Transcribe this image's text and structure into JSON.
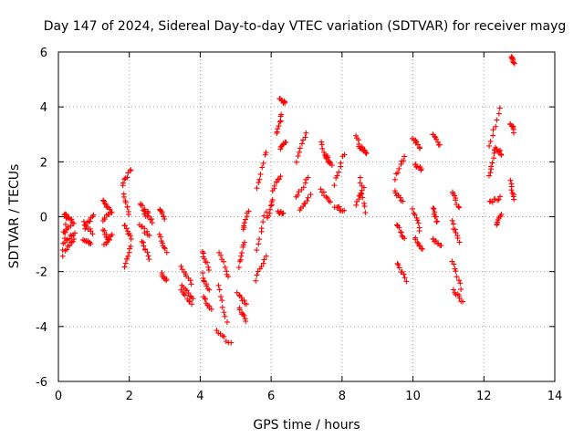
{
  "chart_data": {
    "type": "scatter",
    "title": "Day 147 of 2024, Sidereal Day-to-day VTEC variation (SDTVAR) for receiver mayg",
    "xlabel": "GPS time / hours",
    "ylabel": "SDTVAR / TECUs",
    "xlim": [
      0,
      14
    ],
    "ylim": [
      -6,
      6
    ],
    "xticks": [
      0,
      2,
      4,
      6,
      8,
      10,
      12,
      14
    ],
    "yticks": [
      -6,
      -4,
      -2,
      0,
      2,
      4,
      6
    ],
    "grid": true,
    "marker": "plus",
    "color": "#ff0000",
    "series": [
      {
        "name": "SDTVAR",
        "segments": [
          {
            "x0": 0.12,
            "x1": 0.22,
            "y0": -1.4,
            "y1": 0.1
          },
          {
            "x0": 0.15,
            "x1": 0.38,
            "y0": 0.1,
            "y1": -0.1
          },
          {
            "x0": 0.15,
            "x1": 0.42,
            "y0": -0.6,
            "y1": -0.2
          },
          {
            "x0": 0.18,
            "x1": 0.45,
            "y0": -0.9,
            "y1": -0.6
          },
          {
            "x0": 0.2,
            "x1": 0.45,
            "y0": -1.2,
            "y1": -0.8
          },
          {
            "x0": 0.7,
            "x1": 0.95,
            "y0": -0.2,
            "y1": -0.6
          },
          {
            "x0": 0.7,
            "x1": 0.92,
            "y0": -0.8,
            "y1": -1.0
          },
          {
            "x0": 0.75,
            "x1": 0.98,
            "y0": -0.4,
            "y1": 0.1
          },
          {
            "x0": 1.25,
            "x1": 1.45,
            "y0": 0.6,
            "y1": 0.3
          },
          {
            "x0": 1.25,
            "x1": 1.5,
            "y0": -0.1,
            "y1": 0.2
          },
          {
            "x0": 1.25,
            "x1": 1.45,
            "y0": -0.5,
            "y1": -0.9
          },
          {
            "x0": 1.3,
            "x1": 1.5,
            "y0": -1.0,
            "y1": -0.7
          },
          {
            "x0": 1.8,
            "x1": 2.05,
            "y0": 1.2,
            "y1": 1.7
          },
          {
            "x0": 1.85,
            "x1": 2.0,
            "y0": 0.8,
            "y1": 0.1
          },
          {
            "x0": 1.85,
            "x1": 2.05,
            "y0": -0.3,
            "y1": -0.8
          },
          {
            "x0": 1.85,
            "x1": 2.05,
            "y0": -1.8,
            "y1": -1.1
          },
          {
            "x0": 2.3,
            "x1": 2.5,
            "y0": 0.5,
            "y1": 0.0
          },
          {
            "x0": 2.3,
            "x1": 2.55,
            "y0": -0.3,
            "y1": -0.7
          },
          {
            "x0": 2.35,
            "x1": 2.55,
            "y0": -0.9,
            "y1": -1.5
          },
          {
            "x0": 2.45,
            "x1": 2.65,
            "y0": 0.3,
            "y1": -0.2
          },
          {
            "x0": 2.85,
            "x1": 3.0,
            "y0": 0.3,
            "y1": -0.1
          },
          {
            "x0": 2.85,
            "x1": 3.05,
            "y0": -0.7,
            "y1": -1.3
          },
          {
            "x0": 2.9,
            "x1": 3.05,
            "y0": -2.1,
            "y1": -2.3
          },
          {
            "x0": 3.45,
            "x1": 3.75,
            "y0": -1.8,
            "y1": -2.4
          },
          {
            "x0": 3.45,
            "x1": 3.75,
            "y0": -2.7,
            "y1": -3.2
          },
          {
            "x0": 3.5,
            "x1": 3.8,
            "y0": -2.5,
            "y1": -3.0
          },
          {
            "x0": 4.05,
            "x1": 4.25,
            "y0": -1.3,
            "y1": -1.9
          },
          {
            "x0": 4.05,
            "x1": 4.25,
            "y0": -2.1,
            "y1": -2.7
          },
          {
            "x0": 4.1,
            "x1": 4.3,
            "y0": -2.9,
            "y1": -3.4
          },
          {
            "x0": 4.55,
            "x1": 4.8,
            "y0": -1.3,
            "y1": -2.2
          },
          {
            "x0": 4.5,
            "x1": 4.75,
            "y0": -2.5,
            "y1": -3.8
          },
          {
            "x0": 4.45,
            "x1": 4.85,
            "y0": -4.2,
            "y1": -4.6
          },
          {
            "x0": 5.1,
            "x1": 5.3,
            "y0": -3.3,
            "y1": -3.8
          },
          {
            "x0": 5.05,
            "x1": 5.3,
            "y0": -2.8,
            "y1": -3.2
          },
          {
            "x0": 5.1,
            "x1": 5.25,
            "y0": -1.8,
            "y1": -0.9
          },
          {
            "x0": 5.2,
            "x1": 5.35,
            "y0": -0.5,
            "y1": 0.2
          },
          {
            "x0": 5.55,
            "x1": 5.85,
            "y0": -2.3,
            "y1": -1.4
          },
          {
            "x0": 5.6,
            "x1": 5.85,
            "y0": -1.2,
            "y1": 0.2
          },
          {
            "x0": 5.6,
            "x1": 5.85,
            "y0": 1.0,
            "y1": 2.4
          },
          {
            "x0": 5.9,
            "x1": 6.05,
            "y0": 0.0,
            "y1": 0.6
          },
          {
            "x0": 6.05,
            "x1": 6.25,
            "y0": 1.0,
            "y1": 1.5
          },
          {
            "x0": 6.15,
            "x1": 6.3,
            "y0": 3.0,
            "y1": 3.7
          },
          {
            "x0": 6.25,
            "x1": 6.4,
            "y0": 4.3,
            "y1": 4.1
          },
          {
            "x0": 6.25,
            "x1": 6.4,
            "y0": 2.5,
            "y1": 2.7
          },
          {
            "x0": 6.2,
            "x1": 6.35,
            "y0": 0.2,
            "y1": 0.1
          },
          {
            "x0": 6.7,
            "x1": 7.0,
            "y0": 2.0,
            "y1": 3.1
          },
          {
            "x0": 6.7,
            "x1": 7.05,
            "y0": 0.7,
            "y1": 1.4
          },
          {
            "x0": 6.8,
            "x1": 7.1,
            "y0": 0.2,
            "y1": 0.8
          },
          {
            "x0": 7.4,
            "x1": 7.6,
            "y0": 2.7,
            "y1": 2.0
          },
          {
            "x0": 7.4,
            "x1": 7.65,
            "y0": 1.0,
            "y1": 0.5
          },
          {
            "x0": 7.55,
            "x1": 7.7,
            "y0": 2.2,
            "y1": 1.9
          },
          {
            "x0": 7.8,
            "x1": 8.05,
            "y0": 1.2,
            "y1": 2.3
          },
          {
            "x0": 7.8,
            "x1": 8.05,
            "y0": 0.4,
            "y1": 0.2
          },
          {
            "x0": 8.4,
            "x1": 8.55,
            "y0": 2.9,
            "y1": 2.4
          },
          {
            "x0": 8.4,
            "x1": 8.6,
            "y0": 0.4,
            "y1": 1.1
          },
          {
            "x0": 8.5,
            "x1": 8.65,
            "y0": 1.4,
            "y1": 0.2
          },
          {
            "x0": 8.55,
            "x1": 8.7,
            "y0": 2.5,
            "y1": 2.3
          },
          {
            "x0": 9.5,
            "x1": 9.75,
            "y0": 1.4,
            "y1": 2.2
          },
          {
            "x0": 9.5,
            "x1": 9.7,
            "y0": 0.9,
            "y1": 0.6
          },
          {
            "x0": 9.55,
            "x1": 9.75,
            "y0": -0.3,
            "y1": -0.8
          },
          {
            "x0": 9.55,
            "x1": 9.8,
            "y0": -1.7,
            "y1": -2.3
          },
          {
            "x0": 10.0,
            "x1": 10.2,
            "y0": 2.9,
            "y1": 2.5
          },
          {
            "x0": 10.05,
            "x1": 10.25,
            "y0": 1.9,
            "y1": 1.7
          },
          {
            "x0": 10.0,
            "x1": 10.2,
            "y0": 0.3,
            "y1": -0.5
          },
          {
            "x0": 10.05,
            "x1": 10.25,
            "y0": -0.8,
            "y1": -1.2
          },
          {
            "x0": 10.55,
            "x1": 10.75,
            "y0": 3.0,
            "y1": 2.6
          },
          {
            "x0": 10.55,
            "x1": 10.7,
            "y0": 0.3,
            "y1": -0.2
          },
          {
            "x0": 10.55,
            "x1": 10.8,
            "y0": -0.8,
            "y1": -1.1
          },
          {
            "x0": 11.1,
            "x1": 11.3,
            "y0": 0.9,
            "y1": 0.3
          },
          {
            "x0": 11.1,
            "x1": 11.3,
            "y0": -0.2,
            "y1": -0.9
          },
          {
            "x0": 11.1,
            "x1": 11.35,
            "y0": -1.6,
            "y1": -2.6
          },
          {
            "x0": 11.15,
            "x1": 11.4,
            "y0": -2.7,
            "y1": -3.1
          },
          {
            "x0": 12.15,
            "x1": 12.45,
            "y0": 2.6,
            "y1": 3.9
          },
          {
            "x0": 12.15,
            "x1": 12.3,
            "y0": 1.5,
            "y1": 2.4
          },
          {
            "x0": 12.3,
            "x1": 12.5,
            "y0": 2.5,
            "y1": 2.3
          },
          {
            "x0": 12.15,
            "x1": 12.45,
            "y0": 0.5,
            "y1": 0.7
          },
          {
            "x0": 12.35,
            "x1": 12.5,
            "y0": -0.3,
            "y1": 0.1
          },
          {
            "x0": 12.75,
            "x1": 12.85,
            "y0": 1.3,
            "y1": 0.6
          },
          {
            "x0": 12.75,
            "x1": 12.85,
            "y0": 3.4,
            "y1": 3.1
          },
          {
            "x0": 12.78,
            "x1": 12.85,
            "y0": 5.8,
            "y1": 5.6
          }
        ]
      }
    ]
  }
}
